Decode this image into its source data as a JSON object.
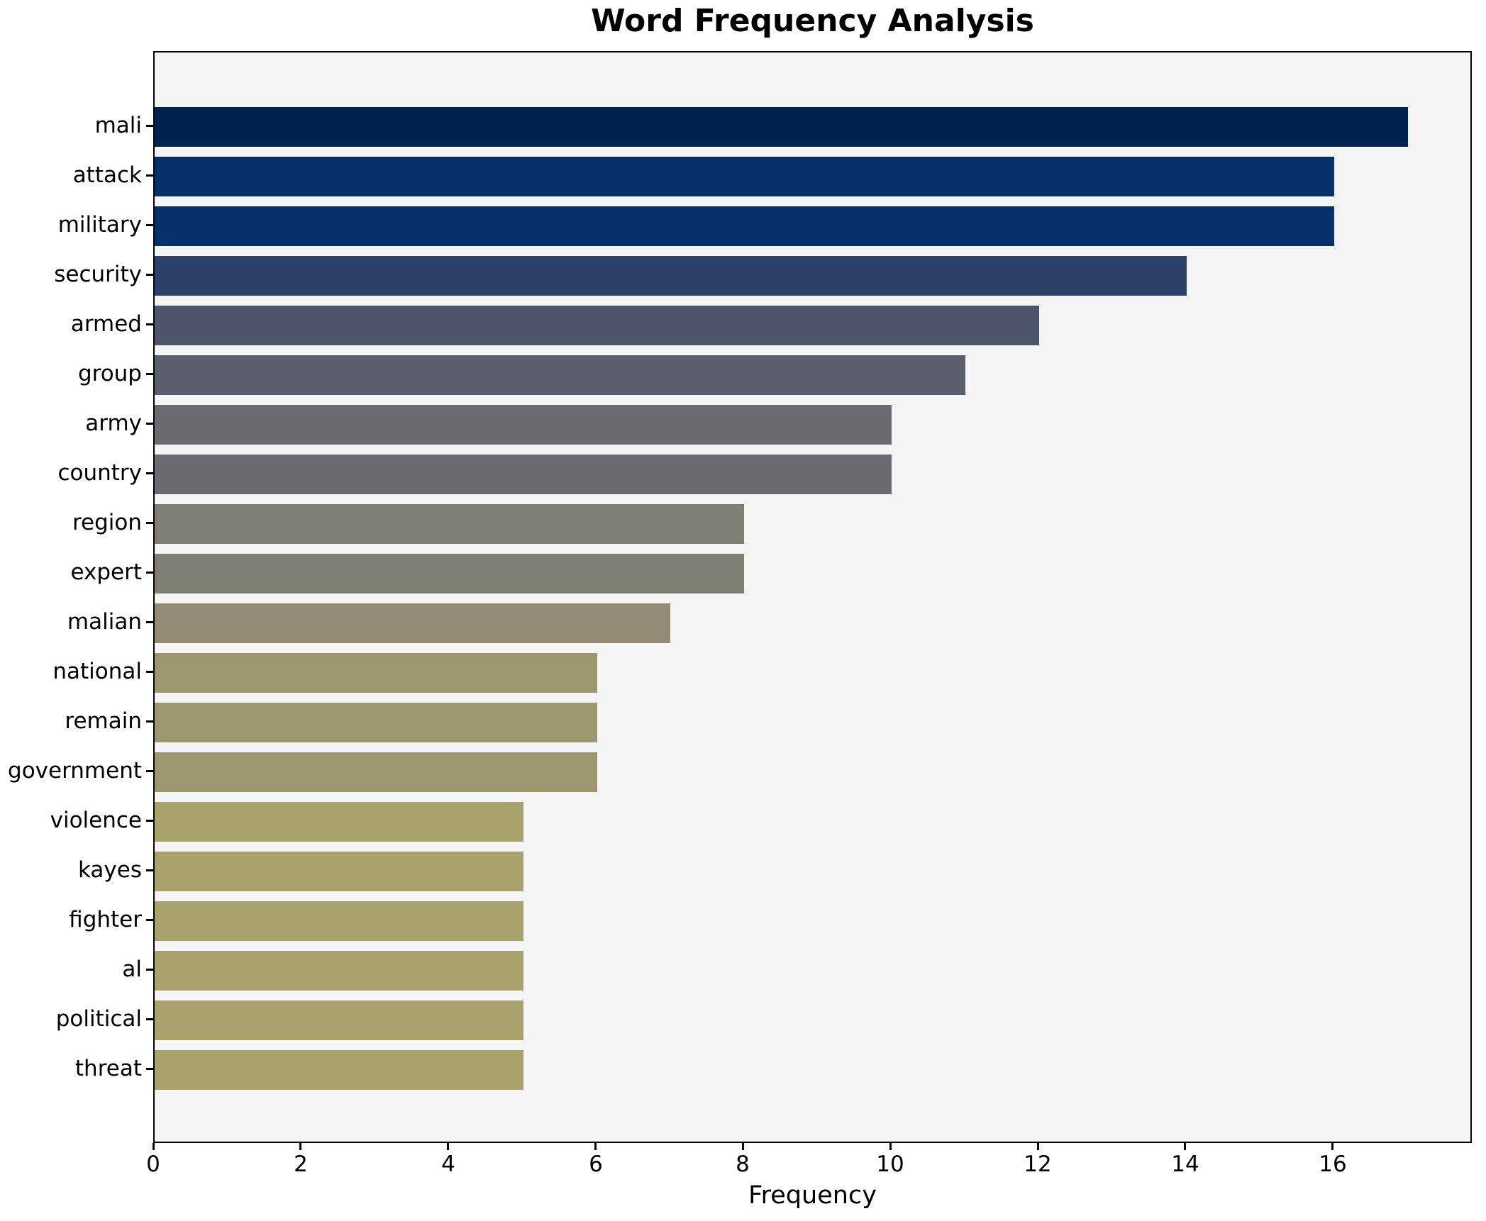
{
  "chart_data": {
    "type": "bar",
    "orientation": "horizontal",
    "title": "Word Frequency Analysis",
    "xlabel": "Frequency",
    "ylabel": "",
    "categories": [
      "mali",
      "attack",
      "military",
      "security",
      "armed",
      "group",
      "army",
      "country",
      "region",
      "expert",
      "malian",
      "national",
      "remain",
      "government",
      "violence",
      "kayes",
      "fighter",
      "al",
      "political",
      "threat"
    ],
    "values": [
      17,
      16,
      16,
      14,
      12,
      11,
      10,
      10,
      8,
      8,
      7,
      6,
      6,
      6,
      5,
      5,
      5,
      5,
      5,
      5
    ],
    "bar_colors": [
      "#00224e",
      "#05306a",
      "#05306a",
      "#2e416b",
      "#4e566e",
      "#5b5f6d",
      "#696c70",
      "#696c70",
      "#817f73",
      "#817f73",
      "#938b76",
      "#9d9770",
      "#9d9770",
      "#9d9770",
      "#aaa26d",
      "#aaa26d",
      "#aaa26d",
      "#aaa26d",
      "#aaa26d",
      "#aaa26d"
    ],
    "xticks": [
      0,
      2,
      4,
      6,
      8,
      10,
      12,
      14,
      16
    ],
    "xlim": [
      0,
      17.85
    ],
    "grid": false,
    "legend_position": "none",
    "plot_bg": "#f5f5f5",
    "figure_bg": "#ffffff",
    "axis_color": "#000000"
  }
}
